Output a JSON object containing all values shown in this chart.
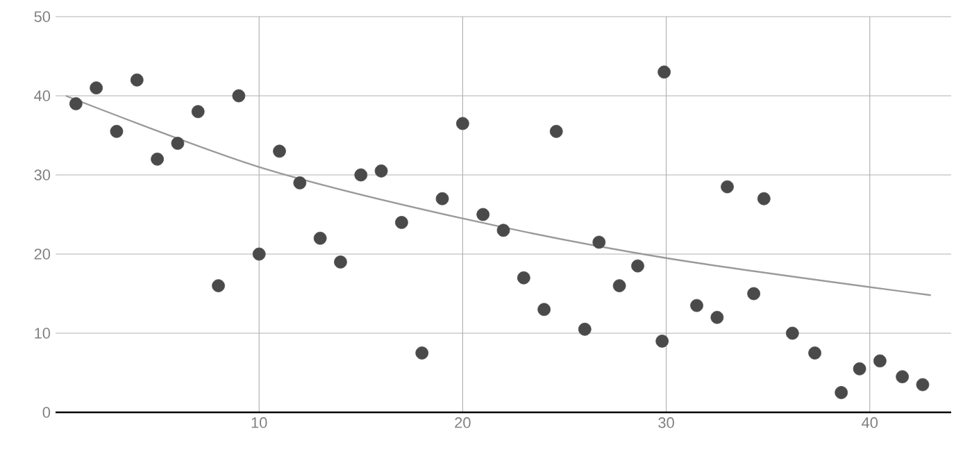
{
  "chart_data": {
    "type": "scatter",
    "xlim": [
      0,
      44
    ],
    "ylim": [
      0,
      50
    ],
    "xticks": [
      10,
      20,
      30,
      40
    ],
    "yticks": [
      0,
      10,
      20,
      30,
      40,
      50
    ],
    "grid": true,
    "marker": "circle",
    "series": [
      {
        "color": "#4a4a4a",
        "x": [
          1,
          2,
          3,
          4,
          5,
          6,
          7,
          8,
          9,
          10,
          11,
          12,
          13,
          14,
          15,
          16,
          17,
          18,
          19,
          20,
          21,
          22,
          23,
          24,
          24.6,
          26,
          26.7,
          27.7,
          28.6,
          29.8,
          29.9,
          31.5,
          32.5,
          33,
          34.3,
          34.8,
          36.2,
          37.3,
          38.6,
          39.5,
          40.5,
          41.6,
          42.6
        ],
        "values": [
          39,
          41,
          35.5,
          42,
          32,
          34,
          38,
          16,
          40,
          20,
          33,
          29,
          22,
          19,
          30,
          30.5,
          24,
          7.5,
          27,
          36.5,
          25,
          23,
          17,
          13,
          35.5,
          10.5,
          21.5,
          16,
          18.5,
          9,
          43,
          13.5,
          12,
          28.5,
          15,
          27,
          10,
          7.5,
          2.5,
          5.5,
          6.5,
          4.5,
          3.5
        ]
      },
      {
        "type": "line",
        "color": "#9a9a9a",
        "marker": "none",
        "x": [
          0.5,
          10,
          20,
          30,
          43
        ],
        "values": [
          40,
          31,
          24.5,
          19.5,
          14.8
        ]
      }
    ]
  }
}
